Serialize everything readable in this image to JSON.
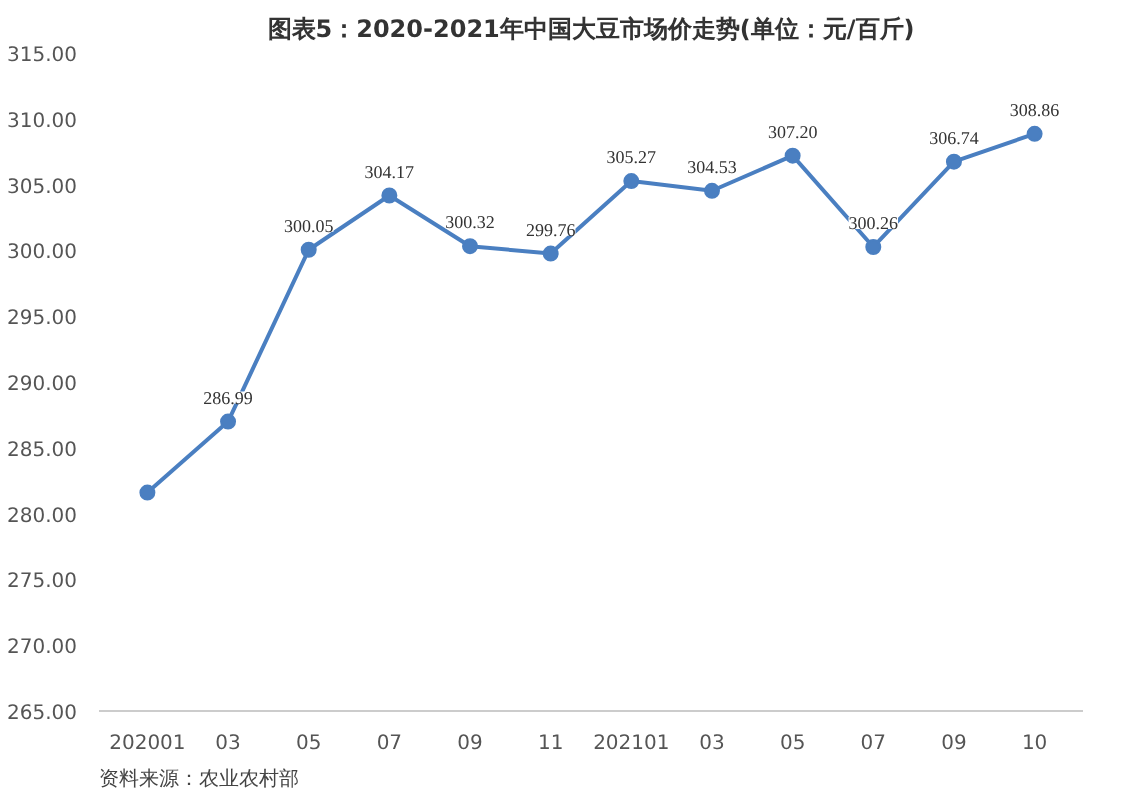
{
  "chart_data": {
    "type": "line",
    "title": "图表5：2020-2021年中国大豆市场价走势(单位：元/百斤)",
    "categories": [
      "202001",
      "03",
      "05",
      "07",
      "09",
      "11",
      "202101",
      "03",
      "05",
      "07",
      "09",
      "10"
    ],
    "series": [
      {
        "color": "#4a7fc1",
        "values": [
          281.6,
          286.99,
          300.05,
          304.17,
          300.32,
          299.76,
          305.27,
          304.53,
          307.2,
          300.26,
          306.74,
          308.86
        ],
        "value_labels": [
          null,
          "286.99",
          "300.05",
          "304.17",
          "300.32",
          "299.76",
          "305.27",
          "304.53",
          "307.20",
          "300.26",
          "306.74",
          "308.86"
        ]
      }
    ],
    "ylim": [
      265,
      315
    ],
    "yticks": [
      {
        "value": 265,
        "label": "265.00"
      },
      {
        "value": 270,
        "label": "270.00"
      },
      {
        "value": 275,
        "label": "275.00"
      },
      {
        "value": 280,
        "label": "280.00"
      },
      {
        "value": 285,
        "label": "285.00"
      },
      {
        "value": 290,
        "label": "290.00"
      },
      {
        "value": 295,
        "label": "295.00"
      },
      {
        "value": 300,
        "label": "300.00"
      },
      {
        "value": 305,
        "label": "305.00"
      },
      {
        "value": 310,
        "label": "310.00"
      },
      {
        "value": 315,
        "label": "315.00"
      }
    ],
    "marker": "circle",
    "grid": false,
    "annotations": [
      "资料来源：农业农村部"
    ]
  }
}
